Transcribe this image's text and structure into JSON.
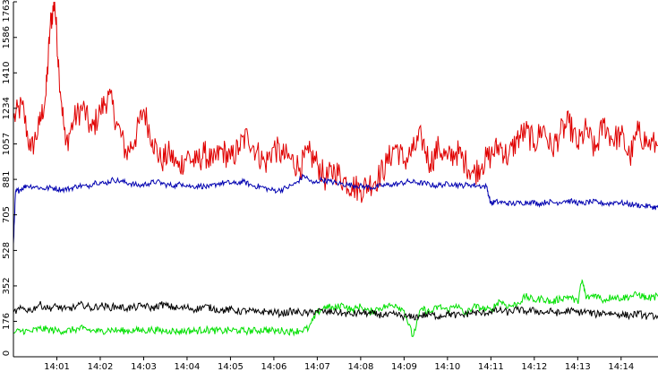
{
  "chart_data": {
    "type": "line",
    "grid": false,
    "legend": "none",
    "x_ticks": [
      "14:01",
      "14:02",
      "14:03",
      "14:04",
      "14:05",
      "14:06",
      "14:07",
      "14:08",
      "14:09",
      "14:10",
      "14:11",
      "14:12",
      "14:13",
      "14:14"
    ],
    "x_range_minutes": [
      0.0,
      14.85
    ],
    "y_ticks": [
      "0",
      "176",
      "352",
      "528",
      "705",
      "881",
      "1057",
      "1234",
      "1410",
      "1586",
      "1763"
    ],
    "ylim": [
      0,
      1763
    ],
    "series": [
      {
        "color": "#e00000",
        "x": [
          0.0,
          0.2,
          0.4,
          0.6,
          0.75,
          0.85,
          0.95,
          1.05,
          1.2,
          1.4,
          1.6,
          1.8,
          2.0,
          2.2,
          2.4,
          2.6,
          2.8,
          3.0,
          3.2,
          3.4,
          3.6,
          3.8,
          4.0,
          4.2,
          4.4,
          4.6,
          4.8,
          5.0,
          5.2,
          5.4,
          5.6,
          5.8,
          6.0,
          6.2,
          6.4,
          6.6,
          6.8,
          7.0,
          7.2,
          7.4,
          7.6,
          7.8,
          8.0,
          8.2,
          8.4,
          8.6,
          8.8,
          9.0,
          9.2,
          9.4,
          9.6,
          9.8,
          10.0,
          10.2,
          10.4,
          10.6,
          10.8,
          11.0,
          11.2,
          11.4,
          11.6,
          11.8,
          12.0,
          12.2,
          12.4,
          12.6,
          12.8,
          13.0,
          13.2,
          13.4,
          13.6,
          13.8,
          14.0,
          14.2,
          14.4,
          14.6,
          14.85
        ],
        "y": [
          1180,
          1250,
          1020,
          1150,
          1300,
          1650,
          1763,
          1420,
          1050,
          1180,
          1240,
          1120,
          1220,
          1300,
          1150,
          1010,
          1080,
          1230,
          1080,
          970,
          1010,
          940,
          1000,
          960,
          1010,
          960,
          1030,
          980,
          1040,
          1100,
          1020,
          960,
          1040,
          1000,
          980,
          940,
          1010,
          960,
          880,
          930,
          880,
          850,
          830,
          860,
          890,
          960,
          1050,
          970,
          1020,
          1090,
          960,
          1040,
          980,
          1020,
          970,
          910,
          960,
          1000,
          1050,
          990,
          1080,
          1120,
          1060,
          1140,
          1030,
          1110,
          1160,
          1050,
          1130,
          1020,
          1160,
          1080,
          1100,
          990,
          1120,
          1060,
          1050
        ]
      },
      {
        "color": "#0000b0",
        "x": [
          0.0,
          0.05,
          0.15,
          0.3,
          0.5,
          0.7,
          0.9,
          1.1,
          1.3,
          1.5,
          1.7,
          1.9,
          2.1,
          2.3,
          2.5,
          2.7,
          2.9,
          3.1,
          3.3,
          3.5,
          3.7,
          3.9,
          4.1,
          4.3,
          4.5,
          4.7,
          4.9,
          5.1,
          5.3,
          5.5,
          5.7,
          5.9,
          6.1,
          6.3,
          6.5,
          6.7,
          6.9,
          7.1,
          7.3,
          7.5,
          7.7,
          7.9,
          8.1,
          8.3,
          8.5,
          8.7,
          8.9,
          9.1,
          9.3,
          9.5,
          9.7,
          9.9,
          10.1,
          10.3,
          10.5,
          10.7,
          10.9,
          11.0,
          11.1,
          11.3,
          11.5,
          11.7,
          11.9,
          12.1,
          12.3,
          12.5,
          12.7,
          12.9,
          13.1,
          13.3,
          13.5,
          13.7,
          13.9,
          14.1,
          14.3,
          14.5,
          14.7,
          14.85
        ],
        "y": [
          560,
          820,
          830,
          850,
          845,
          835,
          840,
          830,
          835,
          850,
          845,
          870,
          860,
          880,
          870,
          860,
          850,
          860,
          870,
          855,
          850,
          860,
          845,
          850,
          840,
          860,
          865,
          860,
          870,
          850,
          845,
          830,
          825,
          840,
          860,
          900,
          860,
          880,
          870,
          860,
          855,
          850,
          845,
          840,
          850,
          855,
          860,
          870,
          865,
          860,
          850,
          855,
          860,
          850,
          855,
          850,
          845,
          760,
          770,
          765,
          760,
          765,
          770,
          760,
          770,
          765,
          775,
          770,
          760,
          770,
          765,
          760,
          770,
          760,
          755,
          750,
          745,
          740
        ]
      },
      {
        "color": "#00e000",
        "x": [
          0.0,
          0.2,
          0.4,
          0.6,
          0.8,
          1.0,
          1.2,
          1.4,
          1.6,
          1.8,
          2.0,
          2.2,
          2.4,
          2.6,
          2.8,
          3.0,
          3.2,
          3.4,
          3.6,
          3.8,
          4.0,
          4.2,
          4.4,
          4.6,
          4.8,
          5.0,
          5.2,
          5.4,
          5.6,
          5.8,
          6.0,
          6.2,
          6.4,
          6.6,
          6.8,
          7.0,
          7.2,
          7.4,
          7.6,
          7.8,
          8.0,
          8.2,
          8.4,
          8.6,
          8.8,
          9.0,
          9.2,
          9.4,
          9.6,
          9.8,
          10.0,
          10.2,
          10.4,
          10.6,
          10.8,
          11.0,
          11.2,
          11.4,
          11.6,
          11.8,
          12.0,
          12.2,
          12.4,
          12.6,
          12.8,
          13.0,
          13.1,
          13.2,
          13.4,
          13.6,
          13.8,
          14.0,
          14.2,
          14.4,
          14.6,
          14.85
        ],
        "y": [
          120,
          130,
          125,
          140,
          135,
          130,
          128,
          135,
          140,
          130,
          125,
          135,
          130,
          128,
          132,
          130,
          135,
          128,
          130,
          125,
          130,
          128,
          135,
          130,
          128,
          132,
          130,
          128,
          130,
          135,
          128,
          130,
          125,
          130,
          140,
          220,
          250,
          240,
          260,
          230,
          250,
          220,
          240,
          250,
          260,
          230,
          100,
          240,
          220,
          250,
          230,
          260,
          210,
          250,
          240,
          230,
          280,
          250,
          260,
          300,
          280,
          290,
          270,
          290,
          300,
          270,
          380,
          290,
          310,
          280,
          300,
          290,
          300,
          310,
          290,
          300
        ]
      },
      {
        "color": "#000000",
        "x": [
          0.0,
          0.2,
          0.4,
          0.6,
          0.8,
          1.0,
          1.2,
          1.4,
          1.6,
          1.8,
          2.0,
          2.2,
          2.4,
          2.6,
          2.8,
          3.0,
          3.2,
          3.4,
          3.6,
          3.8,
          4.0,
          4.2,
          4.4,
          4.6,
          4.8,
          5.0,
          5.2,
          5.4,
          5.6,
          5.8,
          6.0,
          6.2,
          6.4,
          6.6,
          6.8,
          7.0,
          7.2,
          7.4,
          7.6,
          7.8,
          8.0,
          8.2,
          8.4,
          8.6,
          8.8,
          9.0,
          9.2,
          9.4,
          9.6,
          9.8,
          10.0,
          10.2,
          10.4,
          10.6,
          10.8,
          11.0,
          11.2,
          11.4,
          11.6,
          11.8,
          12.0,
          12.2,
          12.4,
          12.6,
          12.8,
          13.0,
          13.2,
          13.4,
          13.6,
          13.8,
          14.0,
          14.2,
          14.4,
          14.6,
          14.85
        ],
        "y": [
          220,
          240,
          230,
          260,
          240,
          250,
          235,
          245,
          260,
          240,
          255,
          245,
          250,
          240,
          245,
          255,
          240,
          260,
          250,
          240,
          245,
          235,
          250,
          240,
          230,
          235,
          225,
          230,
          220,
          225,
          220,
          215,
          225,
          220,
          215,
          230,
          220,
          225,
          215,
          210,
          220,
          215,
          210,
          205,
          210,
          200,
          195,
          205,
          210,
          200,
          215,
          205,
          210,
          220,
          215,
          225,
          230,
          220,
          235,
          225,
          230,
          220,
          225,
          215,
          230,
          220,
          225,
          210,
          220,
          215,
          210,
          205,
          215,
          200,
          205
        ]
      }
    ]
  }
}
